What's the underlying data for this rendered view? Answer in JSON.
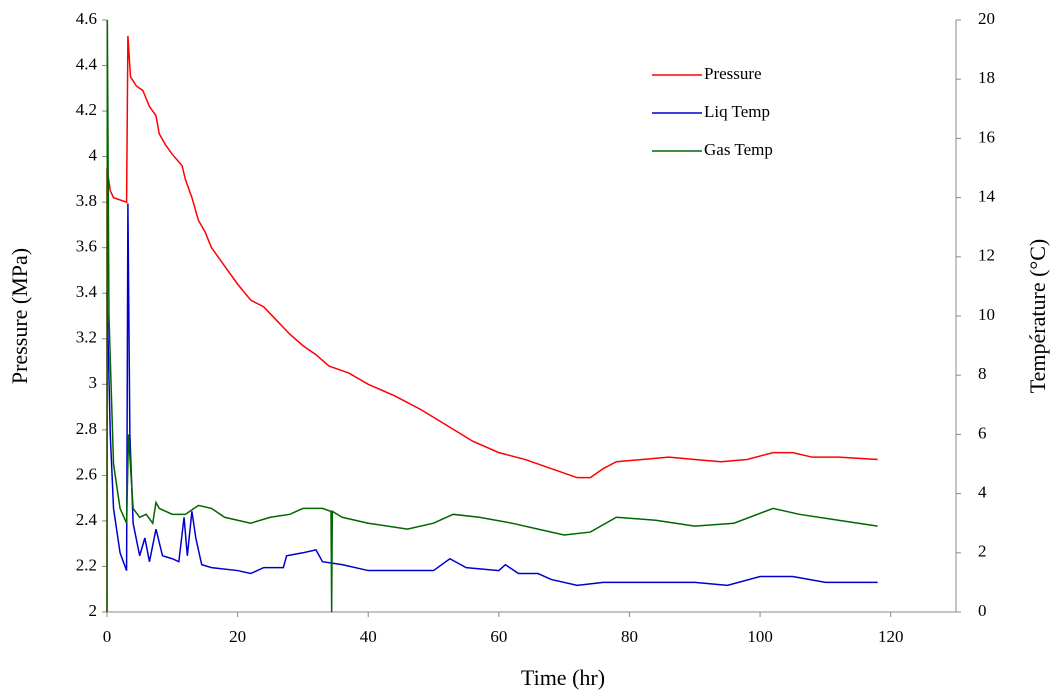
{
  "chart_data": {
    "type": "line",
    "x_label": "Time (hr)",
    "y_label": "Pressure (MPa)",
    "y2_label": "Température (°C)",
    "xlim": [
      0,
      130
    ],
    "xticks": [
      0,
      20,
      40,
      60,
      80,
      100,
      120
    ],
    "ylim": [
      2,
      4.6
    ],
    "yticks": [
      2,
      2.2,
      2.4,
      2.6,
      2.8,
      3,
      3.2,
      3.4,
      3.6,
      3.8,
      4,
      4.2,
      4.4,
      4.6
    ],
    "y2lim": [
      0,
      20
    ],
    "y2ticks": [
      0,
      2,
      4,
      6,
      8,
      10,
      12,
      14,
      16,
      18,
      20
    ],
    "legend": "upper-right",
    "series": [
      {
        "name": "Pressure",
        "color": "#ff0000",
        "x": [
          0,
          0,
          0.5,
          1,
          3,
          3.2,
          3.6,
          4.5,
          5.5,
          6.5,
          7.5,
          8,
          9,
          10,
          11.5,
          12,
          13,
          14,
          15,
          16,
          18,
          20,
          22,
          24,
          26,
          28,
          30,
          32,
          34,
          36,
          37,
          40,
          44,
          48,
          52,
          56,
          60,
          64,
          68,
          72,
          74,
          76,
          78,
          82,
          86,
          90,
          94,
          98,
          102,
          105,
          108,
          112,
          118
        ],
        "values": [
          2,
          3.95,
          3.85,
          3.82,
          3.8,
          4.53,
          4.35,
          4.31,
          4.29,
          4.22,
          4.18,
          4.1,
          4.05,
          4.01,
          3.96,
          3.9,
          3.82,
          3.72,
          3.67,
          3.6,
          3.52,
          3.44,
          3.37,
          3.34,
          3.28,
          3.22,
          3.17,
          3.13,
          3.08,
          3.06,
          3.05,
          3.0,
          2.95,
          2.89,
          2.82,
          2.75,
          2.7,
          2.67,
          2.63,
          2.59,
          2.59,
          2.63,
          2.66,
          2.67,
          2.68,
          2.67,
          2.66,
          2.67,
          2.7,
          2.7,
          2.68,
          2.68,
          2.67
        ]
      },
      {
        "name": "Liq Temp",
        "color": "#0000cc",
        "axis": "y2",
        "x": [
          0,
          0.5,
          1,
          2,
          3,
          3.2,
          3.5,
          4,
          5,
          5.8,
          6.5,
          7.5,
          8.5,
          10,
          11,
          11.8,
          12.3,
          13,
          13.6,
          14.5,
          16,
          20,
          22,
          24,
          27,
          27.5,
          30,
          32,
          33,
          36,
          40,
          45,
          50,
          52.5,
          55,
          60,
          61,
          63,
          66,
          68,
          72,
          76,
          80,
          90,
          95,
          100,
          105,
          110,
          118
        ],
        "values": [
          10.8,
          6,
          3.5,
          2,
          1.4,
          13.8,
          6,
          3,
          1.9,
          2.5,
          1.7,
          2.8,
          1.9,
          1.8,
          1.7,
          3.2,
          1.9,
          3.4,
          2.5,
          1.6,
          1.5,
          1.4,
          1.3,
          1.5,
          1.5,
          1.9,
          2.0,
          2.1,
          1.7,
          1.6,
          1.4,
          1.4,
          1.4,
          1.8,
          1.5,
          1.4,
          1.6,
          1.3,
          1.3,
          1.1,
          0.9,
          1.0,
          1.0,
          1.0,
          0.9,
          1.2,
          1.2,
          1.0,
          1.0
        ]
      },
      {
        "name": "Gas Temp",
        "color": "#006600",
        "axis": "y2",
        "x": [
          0,
          0.05,
          0.3,
          1,
          2,
          3,
          3.3,
          4,
          5,
          6,
          7,
          7.5,
          8,
          10,
          12,
          14,
          16,
          18,
          20,
          22,
          25,
          28,
          30,
          33,
          34.3,
          34.4,
          34.5,
          36,
          40,
          46,
          50,
          53,
          57,
          62,
          66,
          70,
          74,
          78,
          84,
          90,
          96,
          102,
          106,
          112,
          118
        ],
        "values": [
          0,
          20,
          10,
          5,
          3.5,
          3.0,
          6,
          3.5,
          3.2,
          3.3,
          3.0,
          3.7,
          3.5,
          3.3,
          3.3,
          3.6,
          3.5,
          3.2,
          3.1,
          3.0,
          3.2,
          3.3,
          3.5,
          3.5,
          3.4,
          0,
          3.4,
          3.2,
          3.0,
          2.8,
          3.0,
          3.3,
          3.2,
          3.0,
          2.8,
          2.6,
          2.7,
          3.2,
          3.1,
          2.9,
          3.0,
          3.5,
          3.3,
          3.1,
          2.9
        ]
      }
    ]
  }
}
